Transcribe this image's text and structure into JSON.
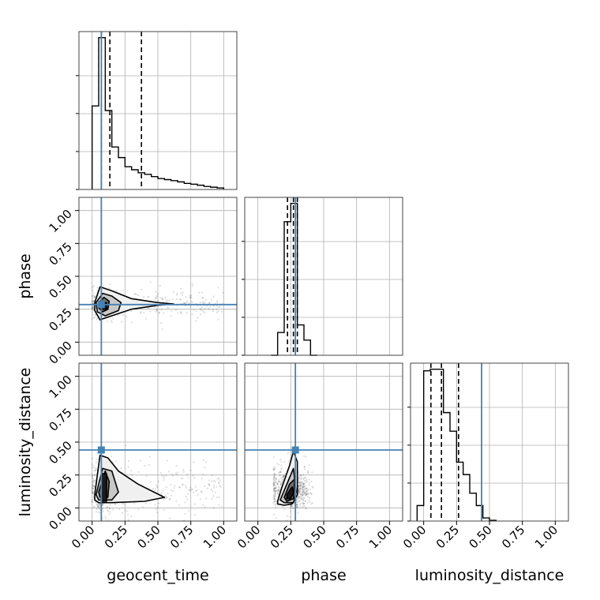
{
  "chart_data": {
    "type": "corner",
    "parameters": [
      {
        "key": "geocent_time",
        "label": "geocent_time",
        "truth": 0.07,
        "quantiles": [
          0.07,
          0.135,
          0.375
        ]
      },
      {
        "key": "phase",
        "label": "phase",
        "truth": 0.285,
        "quantiles": [
          0.225,
          0.27,
          0.3
        ]
      },
      {
        "key": "luminosity_distance",
        "label": "luminosity_distance",
        "truth": 0.44,
        "quantiles": [
          0.055,
          0.135,
          0.265
        ]
      }
    ],
    "range": [
      -0.1,
      1.1
    ],
    "ticks": [
      0.0,
      0.25,
      0.5,
      0.75,
      1.0
    ],
    "tick_labels": [
      "0.00",
      "0.25",
      "0.50",
      "0.75",
      "1.00"
    ],
    "truth_color": "#4682b4",
    "grid": true,
    "histograms": [
      {
        "param": "geocent_time",
        "bins": [
          [
            0.0,
            0.05
          ],
          [
            0.05,
            0.1
          ],
          [
            0.1,
            0.15
          ],
          [
            0.15,
            0.2
          ],
          [
            0.2,
            0.25
          ],
          [
            0.25,
            0.3
          ],
          [
            0.3,
            0.35
          ],
          [
            0.35,
            0.4
          ],
          [
            0.4,
            0.45
          ],
          [
            0.45,
            0.5
          ],
          [
            0.5,
            0.55
          ],
          [
            0.55,
            0.6
          ],
          [
            0.6,
            0.65
          ],
          [
            0.65,
            0.7
          ],
          [
            0.7,
            0.75
          ],
          [
            0.75,
            0.8
          ],
          [
            0.8,
            0.85
          ],
          [
            0.85,
            0.9
          ],
          [
            0.9,
            0.95
          ],
          [
            0.95,
            1.0
          ]
        ],
        "counts": [
          0.55,
          1.0,
          0.52,
          0.28,
          0.21,
          0.15,
          0.13,
          0.11,
          0.1,
          0.085,
          0.072,
          0.065,
          0.058,
          0.05,
          0.04,
          0.035,
          0.028,
          0.02,
          0.015,
          0.01
        ]
      },
      {
        "param": "phase",
        "bins": [
          [
            0.1,
            0.15
          ],
          [
            0.15,
            0.2
          ],
          [
            0.2,
            0.25
          ],
          [
            0.25,
            0.3
          ],
          [
            0.3,
            0.35
          ],
          [
            0.35,
            0.4
          ],
          [
            0.4,
            0.45
          ]
        ],
        "counts": [
          0.0,
          0.15,
          0.88,
          1.0,
          0.2,
          0.1,
          0.0
        ]
      },
      {
        "param": "luminosity_distance",
        "bins": [
          [
            -0.05,
            0.0
          ],
          [
            0.0,
            0.05
          ],
          [
            0.05,
            0.1
          ],
          [
            0.1,
            0.15
          ],
          [
            0.15,
            0.2
          ],
          [
            0.2,
            0.25
          ],
          [
            0.25,
            0.3
          ],
          [
            0.3,
            0.35
          ],
          [
            0.35,
            0.4
          ],
          [
            0.4,
            0.45
          ],
          [
            0.45,
            0.5
          ],
          [
            0.5,
            0.55
          ]
        ],
        "counts": [
          0.1,
          0.97,
          0.98,
          0.98,
          0.7,
          0.58,
          0.38,
          0.3,
          0.18,
          0.1,
          0.02,
          0.005
        ]
      }
    ],
    "scatter_panels": [
      {
        "x_param": "geocent_time",
        "y_param": "phase",
        "cloud": {
          "x_min": 0.0,
          "x_mode": 0.08,
          "x_max": 1.0,
          "y_mean": 0.29,
          "y_spread": 0.07
        },
        "contours": [
          {
            "level": "outer",
            "fill": "#f0f0f0",
            "x": [
              0.02,
              0.06,
              0.15,
              0.3,
              0.5,
              0.62,
              0.5,
              0.3,
              0.15,
              0.06,
              0.02
            ],
            "y": [
              0.3,
              0.42,
              0.39,
              0.33,
              0.3,
              0.29,
              0.28,
              0.25,
              0.2,
              0.17,
              0.24
            ]
          },
          {
            "level": "middle",
            "fill": "#c8c8c8",
            "x": [
              0.03,
              0.08,
              0.15,
              0.22,
              0.2,
              0.1,
              0.04
            ],
            "y": [
              0.3,
              0.37,
              0.35,
              0.3,
              0.24,
              0.2,
              0.23
            ]
          },
          {
            "level": "inner",
            "fill": "#707070",
            "x": [
              0.05,
              0.09,
              0.13,
              0.12,
              0.08,
              0.05
            ],
            "y": [
              0.3,
              0.34,
              0.31,
              0.25,
              0.23,
              0.26
            ]
          },
          {
            "level": "core",
            "fill": "#1a1a1a",
            "x": [
              0.08,
              0.11,
              0.11,
              0.08
            ],
            "y": [
              0.3,
              0.3,
              0.25,
              0.25
            ]
          }
        ]
      },
      {
        "x_param": "geocent_time",
        "y_param": "luminosity_distance",
        "cloud": {
          "x_min": 0.0,
          "x_mode": 0.08,
          "x_max": 1.0,
          "y_mean": 0.15,
          "y_spread": 0.12
        },
        "contours": [
          {
            "level": "outer",
            "fill": "#f0f0f0",
            "x": [
              0.02,
              0.06,
              0.12,
              0.2,
              0.35,
              0.55,
              0.4,
              0.15,
              0.05,
              0.02
            ],
            "y": [
              0.1,
              0.4,
              0.38,
              0.28,
              0.18,
              0.08,
              0.05,
              0.04,
              0.04,
              0.06
            ]
          },
          {
            "level": "middle",
            "fill": "#c8c8c8",
            "x": [
              0.03,
              0.08,
              0.15,
              0.2,
              0.15,
              0.05
            ],
            "y": [
              0.1,
              0.3,
              0.28,
              0.12,
              0.06,
              0.06
            ]
          },
          {
            "level": "inner",
            "fill": "#707070",
            "x": [
              0.05,
              0.1,
              0.13,
              0.12,
              0.06
            ],
            "y": [
              0.12,
              0.28,
              0.2,
              0.08,
              0.08
            ]
          },
          {
            "level": "core",
            "fill": "#1a1a1a",
            "x": [
              0.07,
              0.11,
              0.11,
              0.07
            ],
            "y": [
              0.26,
              0.26,
              0.05,
              0.05
            ]
          }
        ]
      },
      {
        "x_param": "phase",
        "y_param": "luminosity_distance",
        "cloud": {
          "x_min": 0.12,
          "x_mode": 0.27,
          "x_max": 0.42,
          "y_mean": 0.15,
          "y_spread": 0.1
        },
        "contours": [
          {
            "level": "outer",
            "fill": "#f0f0f0",
            "x": [
              0.15,
              0.18,
              0.24,
              0.27,
              0.3,
              0.3,
              0.26,
              0.2,
              0.15
            ],
            "y": [
              0.05,
              0.15,
              0.32,
              0.43,
              0.35,
              0.1,
              0.03,
              0.02,
              0.03
            ]
          },
          {
            "level": "middle",
            "fill": "#c8c8c8",
            "x": [
              0.17,
              0.22,
              0.27,
              0.29,
              0.27,
              0.2
            ],
            "y": [
              0.06,
              0.18,
              0.3,
              0.12,
              0.04,
              0.04
            ]
          },
          {
            "level": "inner",
            "fill": "#707070",
            "x": [
              0.2,
              0.24,
              0.28,
              0.27,
              0.22
            ],
            "y": [
              0.08,
              0.18,
              0.22,
              0.07,
              0.05
            ]
          },
          {
            "level": "core",
            "fill": "#1a1a1a",
            "x": [
              0.22,
              0.26,
              0.27,
              0.25,
              0.22
            ],
            "y": [
              0.1,
              0.16,
              0.12,
              0.07,
              0.07
            ]
          }
        ]
      }
    ]
  }
}
